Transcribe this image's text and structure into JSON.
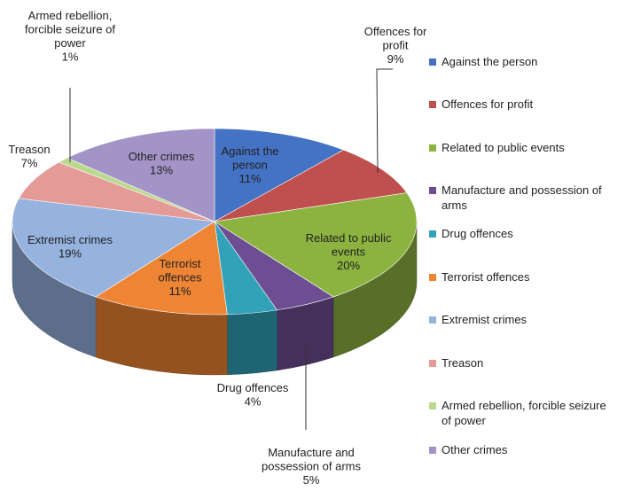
{
  "chart_data": {
    "type": "pie",
    "style": "3d",
    "slices": [
      {
        "label": "Against the person",
        "value": 11,
        "display": "11%",
        "color": "#4472C4"
      },
      {
        "label": "Offences for profit",
        "value": 9,
        "display": "9%",
        "color": "#C0504D"
      },
      {
        "label": "Related to public events",
        "value": 20,
        "display": "20%",
        "color": "#8CB33F"
      },
      {
        "label": "Manufacture and possession of arms",
        "value": 5,
        "display": "5%",
        "color": "#6D4E92"
      },
      {
        "label": "Drug offences",
        "value": 4,
        "display": "4%",
        "color": "#31A2B8"
      },
      {
        "label": "Terrorist offences",
        "value": 11,
        "display": "11%",
        "color": "#EE8534"
      },
      {
        "label": "Extremist crimes",
        "value": 19,
        "display": "19%",
        "color": "#96B2DF"
      },
      {
        "label": "Treason",
        "value": 7,
        "display": "7%",
        "color": "#E49B98"
      },
      {
        "label": "Armed rebellion,  forcible seizure of power",
        "value": 1,
        "display": "1%",
        "color": "#BAD98E"
      },
      {
        "label": "Other crimes",
        "value": 13,
        "display": "13%",
        "color": "#A394C8"
      }
    ],
    "data_labels": {
      "against_person": [
        "Against the",
        "person",
        "11%"
      ],
      "offences_profit": [
        "Offences for",
        "profit",
        "9%"
      ],
      "public_events": [
        "Related to public",
        "events",
        "20%"
      ],
      "arms": [
        "Manufacture and",
        "possession of arms",
        "5%"
      ],
      "drug": [
        "Drug offences",
        "4%"
      ],
      "terrorist": [
        "Terrorist",
        "offences",
        "11%"
      ],
      "extremist": [
        "Extremist crimes",
        "19%"
      ],
      "treason": [
        "Treason",
        "7%"
      ],
      "rebellion": [
        "Armed rebellion,",
        "forcible seizure of",
        "power",
        "1%"
      ],
      "other": [
        "Other crimes",
        "13%"
      ]
    },
    "legend": {
      "position": "right",
      "entries": [
        {
          "lines": [
            "Against the person"
          ],
          "color": "#4472C4"
        },
        {
          "lines": [
            "Offences for profit"
          ],
          "color": "#C0504D"
        },
        {
          "lines": [
            "Related to public events"
          ],
          "color": "#8CB33F"
        },
        {
          "lines": [
            "Manufacture and possession of",
            "arms"
          ],
          "color": "#6D4E92"
        },
        {
          "lines": [
            "Drug offences"
          ],
          "color": "#31A2B8"
        },
        {
          "lines": [
            "Terrorist offences"
          ],
          "color": "#EE8534"
        },
        {
          "lines": [
            "Extremist crimes"
          ],
          "color": "#96B2DF"
        },
        {
          "lines": [
            "Treason"
          ],
          "color": "#E49B98"
        },
        {
          "lines": [
            "Armed rebellion,  forcible seizure",
            "of power"
          ],
          "color": "#BAD98E"
        },
        {
          "lines": [
            "Other crimes"
          ],
          "color": "#A394C8"
        }
      ]
    }
  }
}
